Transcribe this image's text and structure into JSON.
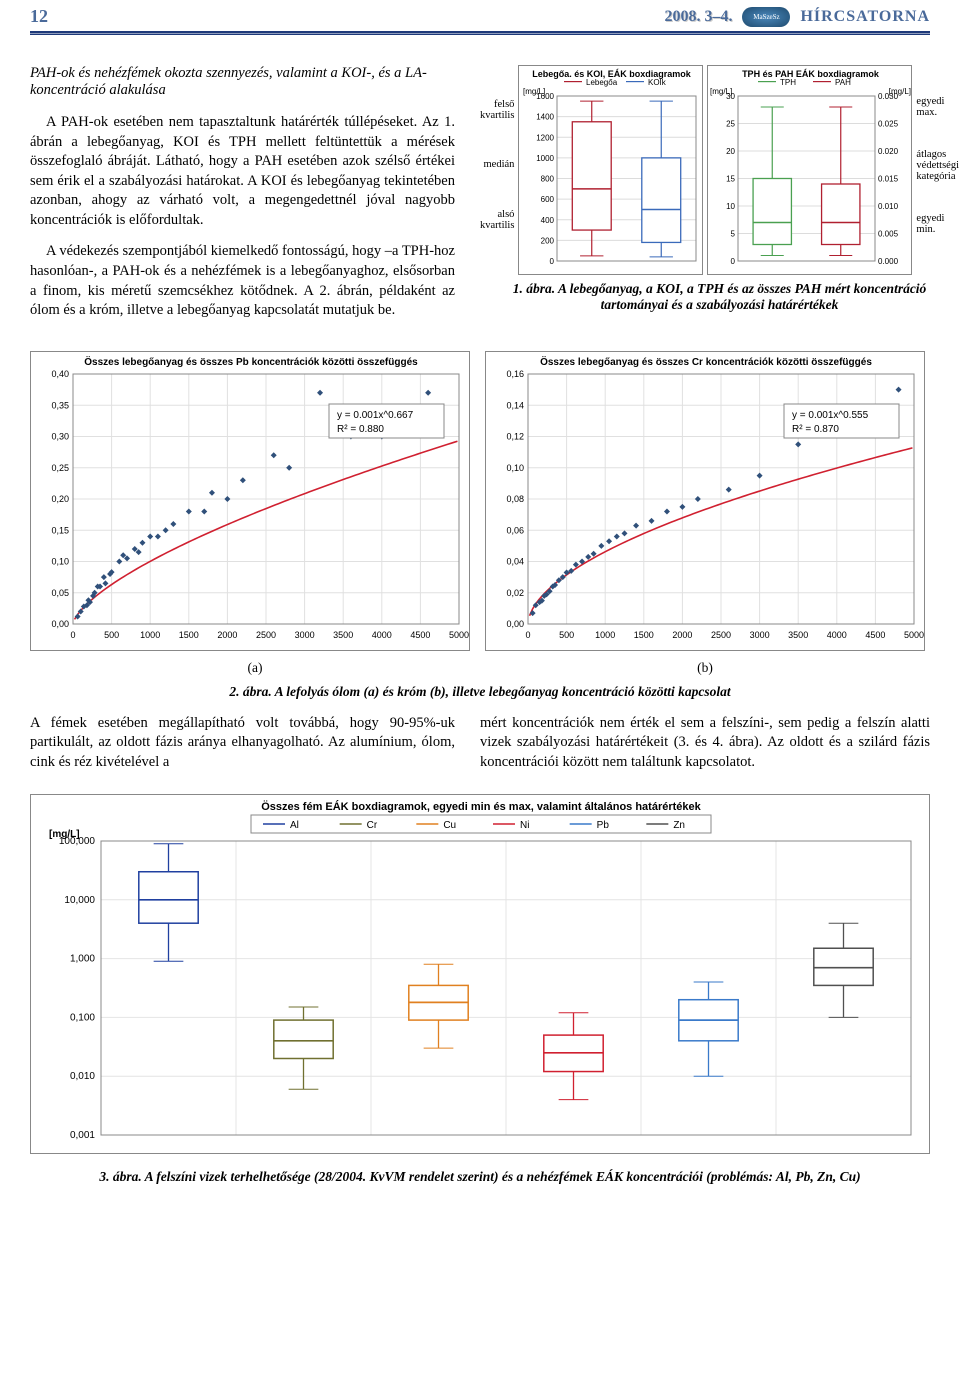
{
  "header": {
    "page_number": "12",
    "date": "2008. 3–4.",
    "logo_text": "MaSzeSz",
    "section": "HÍRCSATORNA"
  },
  "text": {
    "subtitle": "PAH-ok és nehézfémek okozta szennyezés, valamint a KOI-, és a LA- koncentráció alakulása",
    "para1": "A PAH-ok esetében nem tapasztaltunk határérték túllépéseket. Az 1. ábrán a lebegőanyag, KOI és TPH mellett feltüntettük a mérések összefoglaló ábráját. Látható, hogy a PAH esetében azok szélső értékei sem érik el a szabályozási határokat. A KOI és lebegőanyag tekintetében azonban, ahogy az várható volt, a megengedettnél jóval nagyobb koncentrációk is előfordultak.",
    "para2": "A védekezés szempontjából kiemelkedő fontosságú, hogy –a TPH-hoz hasonlóan-, a PAH-ok és a nehézfémek is a lebegőanyaghoz, elsősorban a finom, kis méretű szemcsékhez kötődnek. A 2. ábrán, példaként az ólom és a króm, illetve a lebegőanyag kapcsolatát mutatjuk be.",
    "fig1_left_labels": [
      "felső\nkvartilis",
      "medián",
      "alsó\nkvartilis"
    ],
    "fig1_right_labels": [
      "egyedi\nmax.",
      "átlagos\nvédettségi\nkategória",
      "egyedi\nmin."
    ],
    "fig1_caption": "1. ábra. A lebegőanyag, a KOI, a TPH és az összes PAH mért koncentráció tartományai és a szabályozási határértékek",
    "fig2_a": "(a)",
    "fig2_b": "(b)",
    "fig2_caption": "2. ábra. A lefolyás ólom (a) és króm (b), illetve lebegőanyag koncentráció közötti kapcsolat",
    "para3": "A fémek esetében megállapítható volt továbbá, hogy 90-95%-uk partikulált, az oldott fázis aránya elhanyagolható. Az alumínium, ólom, cink és réz kivételével a",
    "para4": "mért koncentrációk nem érték el sem a felszíni-, sem pedig a felszín alatti vizek szabályozási határértékeit (3. és 4. ábra). Az oldott és a szilárd fázis koncentrációi között nem találtunk kapcsolatot.",
    "fig3_caption": "3. ábra. A felszíni vizek terhelhetősége (28/2004. KvVM rendelet szerint) és a nehézfémek EÁK koncentrációi (problémás: Al, Pb, Zn, Cu)"
  },
  "fig1_boxplot_left": {
    "title": "Lebegőa. és KOI, EÁK boxdiagramok",
    "ylabel": "[mg/L]",
    "legend": [
      "Lebegőa",
      "KOIk"
    ],
    "legend_colors": [
      "#b02030",
      "#3a6aba"
    ],
    "ylim": [
      0,
      1600
    ],
    "ytick_step": 200,
    "grid_color": "#dcdcdc",
    "series": [
      {
        "name": "Lebegőa",
        "color": "#b02030",
        "x": 1,
        "min": 50,
        "q1": 300,
        "med": 700,
        "q3": 1350,
        "max": 1550
      },
      {
        "name": "KOIk",
        "color": "#3a6aba",
        "x": 2,
        "min": 40,
        "q1": 180,
        "med": 500,
        "q3": 1000,
        "max": 1550
      }
    ]
  },
  "fig1_boxplot_right": {
    "title": "TPH és PAH EÁK boxdiagramok",
    "ylabel_left": "[mg/L]",
    "ylabel_right": "[mg/L]",
    "legend": [
      "TPH",
      "PAH"
    ],
    "legend_colors": [
      "#4aa050",
      "#b02030"
    ],
    "left_ylim": [
      0,
      30
    ],
    "left_ytick_step": 5,
    "right_ylim": [
      0,
      0.03
    ],
    "right_ytick_step": 0.005,
    "grid_color": "#dcdcdc",
    "series": [
      {
        "name": "TPH",
        "color": "#4aa050",
        "x": 1,
        "axis": "left",
        "min": 1,
        "q1": 3,
        "med": 7,
        "q3": 15,
        "max": 28
      },
      {
        "name": "PAH",
        "color": "#b02030",
        "x": 2,
        "axis": "right",
        "min": 0.001,
        "q1": 0.003,
        "med": 0.007,
        "q3": 0.014,
        "max": 0.028
      }
    ]
  },
  "scatter_pb": {
    "title": "Összes lebegőanyag és összes Pb koncentrációk közötti összefüggés",
    "title_fontsize": 10,
    "xlim": [
      0,
      5000
    ],
    "xtick_step": 500,
    "ylim": [
      0,
      0.4
    ],
    "ytick_step": 0.05,
    "grid_color": "#e0e0e0",
    "equation": "y = 0.001x^0.667",
    "r2": "R² = 0.880",
    "fit_color": "#d02030",
    "marker_color": "#30507a",
    "marker_size": 3,
    "points": [
      [
        60,
        0.012
      ],
      [
        100,
        0.02
      ],
      [
        140,
        0.028
      ],
      [
        180,
        0.03
      ],
      [
        200,
        0.038
      ],
      [
        220,
        0.035
      ],
      [
        260,
        0.045
      ],
      [
        280,
        0.05
      ],
      [
        320,
        0.06
      ],
      [
        350,
        0.06
      ],
      [
        400,
        0.075
      ],
      [
        420,
        0.065
      ],
      [
        480,
        0.08
      ],
      [
        500,
        0.083
      ],
      [
        600,
        0.1
      ],
      [
        650,
        0.11
      ],
      [
        700,
        0.105
      ],
      [
        800,
        0.12
      ],
      [
        850,
        0.115
      ],
      [
        900,
        0.13
      ],
      [
        1000,
        0.14
      ],
      [
        1100,
        0.14
      ],
      [
        1200,
        0.15
      ],
      [
        1300,
        0.16
      ],
      [
        1500,
        0.18
      ],
      [
        1700,
        0.18
      ],
      [
        1800,
        0.21
      ],
      [
        2000,
        0.2
      ],
      [
        2200,
        0.23
      ],
      [
        2600,
        0.27
      ],
      [
        2800,
        0.25
      ],
      [
        3200,
        0.37
      ],
      [
        3600,
        0.3
      ],
      [
        4000,
        0.3
      ],
      [
        4600,
        0.37
      ]
    ]
  },
  "scatter_cr": {
    "title": "Összes lebegőanyag és összes Cr koncentrációk közötti összefüggés",
    "title_fontsize": 10,
    "xlim": [
      0,
      5000
    ],
    "xtick_step": 500,
    "ylim": [
      0,
      0.16
    ],
    "ytick_step": 0.02,
    "grid_color": "#e0e0e0",
    "equation": "y = 0.001x^0.555",
    "r2": "R² = 0.870",
    "fit_color": "#d02030",
    "marker_color": "#30507a",
    "marker_size": 3,
    "points": [
      [
        60,
        0.007
      ],
      [
        100,
        0.012
      ],
      [
        150,
        0.014
      ],
      [
        180,
        0.015
      ],
      [
        210,
        0.018
      ],
      [
        240,
        0.019
      ],
      [
        280,
        0.021
      ],
      [
        320,
        0.024
      ],
      [
        350,
        0.025
      ],
      [
        400,
        0.028
      ],
      [
        450,
        0.03
      ],
      [
        500,
        0.033
      ],
      [
        560,
        0.034
      ],
      [
        620,
        0.038
      ],
      [
        700,
        0.04
      ],
      [
        780,
        0.043
      ],
      [
        850,
        0.045
      ],
      [
        950,
        0.05
      ],
      [
        1050,
        0.053
      ],
      [
        1150,
        0.056
      ],
      [
        1250,
        0.058
      ],
      [
        1400,
        0.063
      ],
      [
        1600,
        0.066
      ],
      [
        1800,
        0.072
      ],
      [
        2000,
        0.075
      ],
      [
        2200,
        0.08
      ],
      [
        2600,
        0.086
      ],
      [
        3000,
        0.095
      ],
      [
        3500,
        0.115
      ],
      [
        4000,
        0.125
      ],
      [
        4400,
        0.128
      ],
      [
        4800,
        0.15
      ]
    ]
  },
  "fig3_boxplot": {
    "title": "Összes fém EÁK boxdiagramok, egyedi min és max, valamint általános határértékek",
    "title_fontsize": 11,
    "ylabel": "[mg/L]",
    "yscale": "log",
    "ylim": [
      0.001,
      100
    ],
    "yticks": [
      0.001,
      0.01,
      0.1,
      1.0,
      10.0,
      100.0
    ],
    "ytick_labels": [
      "0,001",
      "0,010",
      "0,100",
      "1,000",
      "10,000",
      "100,000"
    ],
    "grid_color": "#e4e4e4",
    "legend": [
      "Al",
      "Cr",
      "Cu",
      "Ni",
      "Pb",
      "Zn"
    ],
    "legend_colors": [
      "#2040a0",
      "#707030",
      "#e08020",
      "#d02030",
      "#3a7aca",
      "#505050"
    ],
    "series": [
      {
        "name": "Al",
        "color": "#2040a0",
        "x": 1,
        "min": 0.9,
        "q1": 4,
        "med": 10,
        "q3": 30,
        "max": 90
      },
      {
        "name": "Cr",
        "color": "#707030",
        "x": 2,
        "min": 0.006,
        "q1": 0.02,
        "med": 0.04,
        "q3": 0.09,
        "max": 0.15
      },
      {
        "name": "Cu",
        "color": "#e08020",
        "x": 3,
        "min": 0.03,
        "q1": 0.09,
        "med": 0.18,
        "q3": 0.35,
        "max": 0.8
      },
      {
        "name": "Ni",
        "color": "#d02030",
        "x": 4,
        "min": 0.004,
        "q1": 0.012,
        "med": 0.025,
        "q3": 0.05,
        "max": 0.12
      },
      {
        "name": "Pb",
        "color": "#3a7aca",
        "x": 5,
        "min": 0.01,
        "q1": 0.04,
        "med": 0.09,
        "q3": 0.2,
        "max": 0.4
      },
      {
        "name": "Zn",
        "color": "#505050",
        "x": 6,
        "min": 0.1,
        "q1": 0.35,
        "med": 0.7,
        "q3": 1.5,
        "max": 4
      }
    ]
  }
}
